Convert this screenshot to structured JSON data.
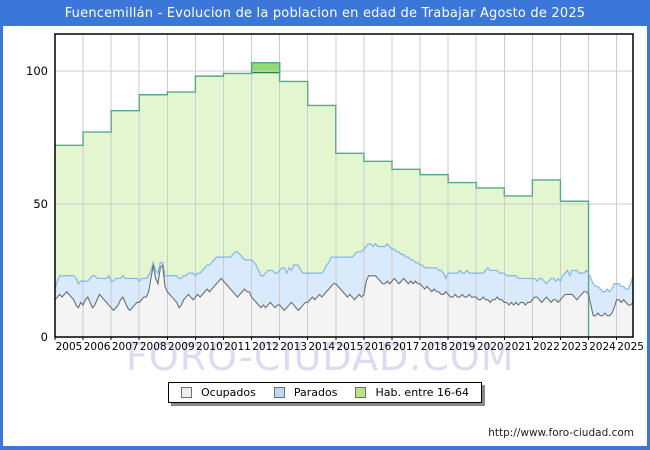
{
  "title_bar": {
    "text": "Fuencemillán - Evolucion de la poblacion en edad de Trabajar Agosto de 2025",
    "bg_color": "#3b76d9",
    "text_color": "#ffffff"
  },
  "watermark_text": "FORO-CIUDAD.COM",
  "footer": {
    "url_text": "http://www.foro-ciudad.com"
  },
  "legend": {
    "position": "bottom",
    "items": [
      {
        "label": "Ocupados",
        "swatch_color": "#ededed",
        "swatch_border": "#6f6f6f"
      },
      {
        "label": "Parados",
        "swatch_color": "#bcd9f5",
        "swatch_border": "#6f6f6f"
      },
      {
        "label": "Hab. entre 16-64",
        "swatch_color": "#b4e57e",
        "swatch_border": "#6f6f6f"
      }
    ]
  },
  "chart_data": {
    "type": "area",
    "title": "Fuencemillán - Evolucion de la poblacion en edad de Trabajar Agosto de 2025",
    "x_unit": "month",
    "x_start": "2005-01",
    "x_end": "2025-08",
    "grid": "on",
    "y_axis": {
      "ticks": [
        0,
        50,
        100
      ],
      "range": [
        0,
        114
      ]
    },
    "x_axis": {
      "years": [
        2005,
        2006,
        2007,
        2008,
        2009,
        2010,
        2011,
        2012,
        2013,
        2014,
        2015,
        2016,
        2017,
        2018,
        2019,
        2020,
        2021,
        2022,
        2023,
        2024,
        2025
      ]
    },
    "colors": {
      "hab_fill": "#e3f6d0",
      "hab_line": "#58a98c",
      "hab_cap_fill": "#92d873",
      "hab_cap_line": "#1f8038",
      "parados_fill": "#d8eafb",
      "parados_line": "#84b6e8",
      "ocupados_fill": "#f4f4f4",
      "ocupados_line": "#6e6e6e",
      "gridline": "#cccccc",
      "plot_border": "#000000"
    },
    "series": [
      {
        "name": "Hab. entre 16-64",
        "resolution": "annual",
        "years": [
          2005,
          2006,
          2007,
          2008,
          2009,
          2010,
          2011,
          2012,
          2013,
          2014,
          2015,
          2016,
          2017,
          2018,
          2019,
          2020,
          2021,
          2022,
          2023,
          2024,
          2025
        ],
        "values": [
          72,
          77,
          85,
          91,
          92,
          98,
          99,
          103,
          96,
          87,
          69,
          66,
          63,
          61,
          58,
          56,
          53,
          59,
          51,
          null,
          null
        ]
      },
      {
        "name": "Ocupados",
        "resolution": "monthly",
        "stacking": "base",
        "monthly_by_year": [
          [
            14,
            15,
            16,
            15,
            16,
            17,
            16,
            15,
            14,
            12,
            11,
            13
          ],
          [
            12,
            14,
            15,
            13,
            11,
            12,
            14,
            16,
            15,
            14,
            13,
            12
          ],
          [
            11,
            10,
            11,
            12,
            14,
            15,
            13,
            11,
            10,
            11,
            12,
            13
          ],
          [
            13,
            14,
            15,
            15,
            17,
            22,
            27,
            22,
            20,
            26,
            27,
            19
          ],
          [
            17,
            16,
            15,
            14,
            13,
            11,
            12,
            14,
            15,
            16,
            15,
            14
          ],
          [
            15,
            16,
            15,
            16,
            17,
            18,
            17,
            18,
            19,
            20,
            21,
            22
          ],
          [
            21,
            20,
            19,
            18,
            17,
            16,
            15,
            16,
            17,
            18,
            17,
            17
          ],
          [
            15,
            14,
            13,
            12,
            11,
            12,
            11,
            12,
            13,
            12,
            11,
            12
          ],
          [
            12,
            11,
            10,
            11,
            12,
            13,
            12,
            11,
            10,
            11,
            12,
            13
          ],
          [
            13,
            14,
            15,
            14,
            15,
            16,
            15,
            16,
            17,
            18,
            19,
            20
          ],
          [
            20,
            19,
            18,
            17,
            16,
            15,
            16,
            15,
            14,
            15,
            16,
            15
          ],
          [
            16,
            21,
            23,
            23,
            23,
            23,
            22,
            21,
            20,
            20,
            21,
            20
          ],
          [
            21,
            22,
            21,
            20,
            21,
            22,
            21,
            20,
            21,
            20,
            21,
            20
          ],
          [
            20,
            19,
            18,
            19,
            18,
            17,
            18,
            17,
            17,
            16,
            16,
            17
          ],
          [
            16,
            15,
            15,
            16,
            15,
            15,
            16,
            15,
            15,
            16,
            15,
            15
          ],
          [
            15,
            14,
            14,
            15,
            14,
            14,
            13,
            14,
            14,
            15,
            14,
            14
          ],
          [
            13,
            13,
            12,
            13,
            12,
            13,
            12,
            13,
            13,
            12,
            13,
            13
          ],
          [
            14,
            15,
            15,
            14,
            13,
            14,
            15,
            14,
            13,
            14,
            14,
            13
          ],
          [
            14,
            15,
            16,
            16,
            16,
            16,
            15,
            14,
            15,
            16,
            17,
            17
          ],
          [
            16,
            12,
            8,
            8,
            9,
            8,
            8,
            9,
            8,
            8,
            9,
            11
          ],
          [
            14,
            14,
            13,
            14,
            13,
            12,
            12,
            13
          ]
        ]
      },
      {
        "name": "Parados",
        "resolution": "monthly",
        "stacking": "on_ocupados",
        "monthly_by_year": [
          [
            4,
            6,
            7,
            8,
            7,
            6,
            7,
            8,
            9,
            10,
            9,
            8
          ],
          [
            9,
            7,
            6,
            9,
            12,
            11,
            8,
            6,
            7,
            8,
            9,
            11
          ],
          [
            10,
            11,
            11,
            10,
            8,
            8,
            9,
            11,
            12,
            11,
            10,
            9
          ],
          [
            8,
            8,
            7,
            7,
            6,
            3,
            1,
            3,
            4,
            2,
            1,
            4
          ],
          [
            6,
            7,
            8,
            9,
            10,
            11,
            10,
            9,
            8,
            8,
            9,
            10
          ],
          [
            8,
            8,
            9,
            9,
            9,
            9,
            10,
            10,
            10,
            10,
            9,
            8
          ],
          [
            9,
            10,
            11,
            12,
            14,
            16,
            17,
            15,
            13,
            11,
            12,
            12
          ],
          [
            14,
            14,
            14,
            13,
            12,
            11,
            13,
            13,
            12,
            13,
            13,
            12
          ],
          [
            13,
            15,
            16,
            13,
            14,
            12,
            15,
            16,
            17,
            14,
            12,
            11
          ],
          [
            11,
            10,
            9,
            10,
            9,
            8,
            9,
            9,
            10,
            10,
            11,
            10
          ],
          [
            10,
            11,
            12,
            13,
            14,
            15,
            14,
            15,
            17,
            17,
            16,
            17
          ],
          [
            17,
            13,
            12,
            12,
            11,
            12,
            12,
            13,
            14,
            14,
            14,
            14
          ],
          [
            12,
            11,
            11,
            12,
            10,
            9,
            9,
            10,
            8,
            9,
            7,
            8
          ],
          [
            7,
            8,
            8,
            7,
            8,
            9,
            8,
            9,
            8,
            9,
            8,
            5
          ],
          [
            8,
            9,
            9,
            8,
            9,
            10,
            8,
            9,
            10,
            8,
            9,
            9
          ],
          [
            9,
            10,
            10,
            9,
            11,
            12,
            12,
            11,
            11,
            10,
            10,
            10
          ],
          [
            11,
            10,
            11,
            10,
            11,
            10,
            10,
            9,
            9,
            10,
            9,
            9
          ],
          [
            8,
            7,
            6,
            8,
            9,
            7,
            5,
            7,
            9,
            8,
            7,
            9
          ],
          [
            7,
            8,
            8,
            9,
            7,
            9,
            10,
            11,
            9,
            8,
            7,
            8
          ],
          [
            8,
            10,
            12,
            11,
            10,
            10,
            9,
            8,
            10,
            9,
            9,
            9
          ],
          [
            6,
            6,
            6,
            5,
            5,
            6,
            8,
            10
          ]
        ]
      }
    ],
    "annotations": {
      "peak_cap": {
        "year": 2012,
        "value_from": 99.3,
        "value_to": 103
      }
    }
  }
}
